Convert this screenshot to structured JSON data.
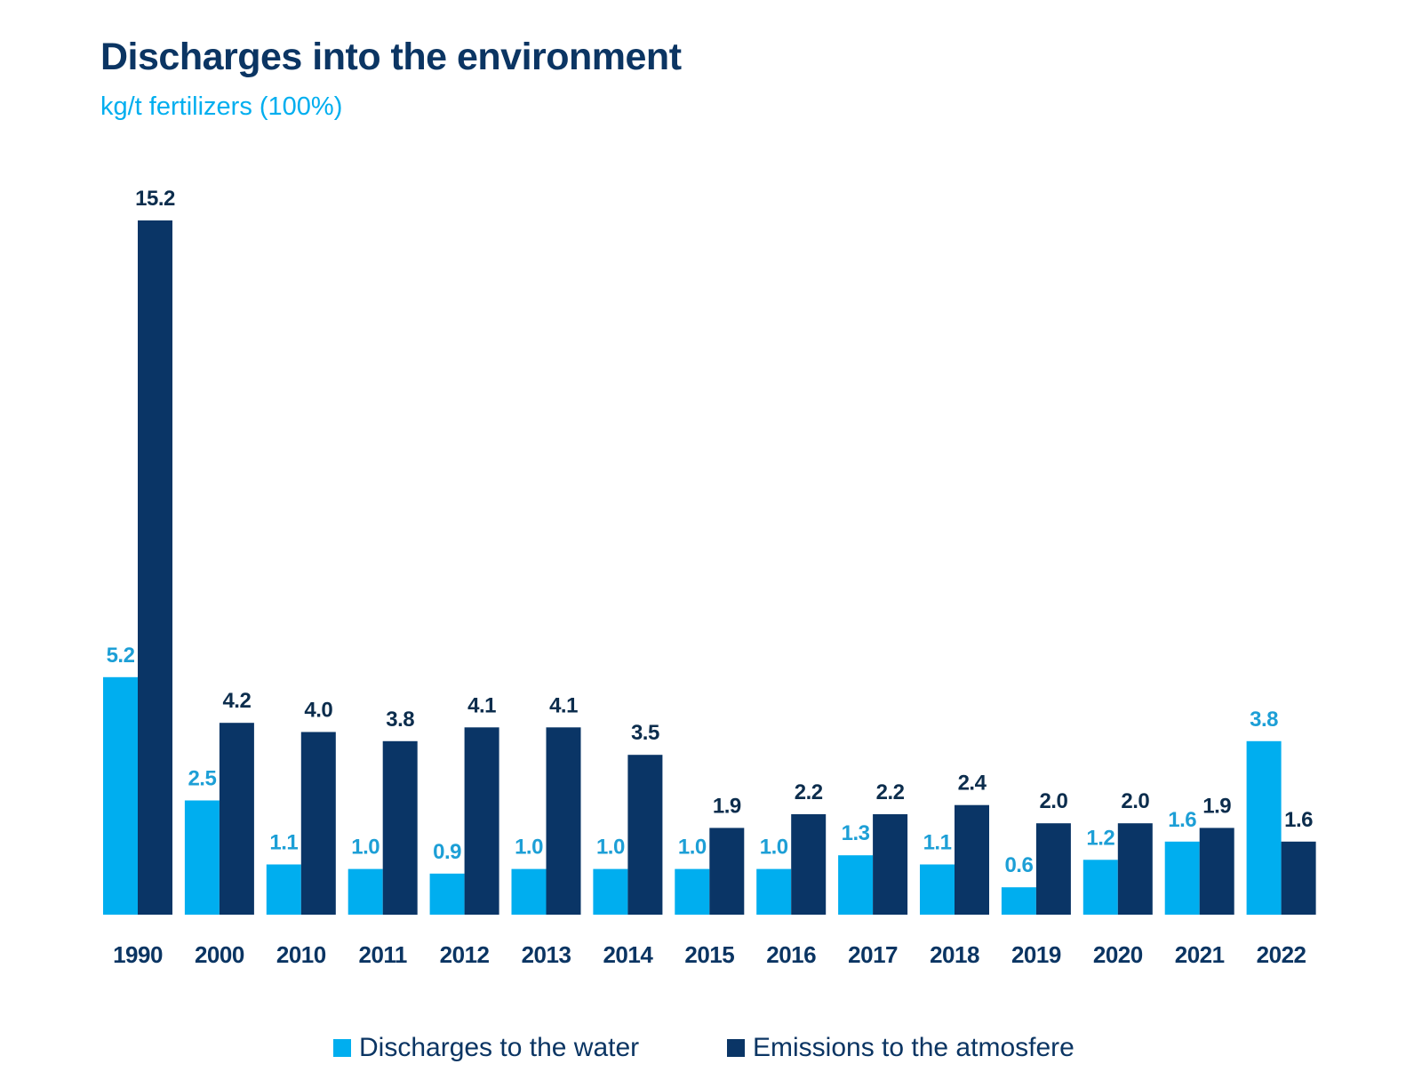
{
  "header": {
    "title": "Discharges into the environment",
    "subtitle": "kg/t fertilizers (100%)"
  },
  "colors": {
    "water": "#00aeef",
    "water_label": "#1d9fd6",
    "atmosphere": "#0a3566",
    "atmosphere_label": "#0c2d4d",
    "category_label": "#0b3563"
  },
  "chart_data": {
    "type": "bar",
    "title": "Discharges into the environment",
    "subtitle": "kg/t fertilizers (100%)",
    "xlabel": "",
    "ylabel": "",
    "ylim": [
      0,
      15.2
    ],
    "grid": false,
    "legend_position": "bottom-center",
    "categories": [
      "1990",
      "2000",
      "2010",
      "2011",
      "2012",
      "2013",
      "2014",
      "2015",
      "2016",
      "2017",
      "2018",
      "2019",
      "2020",
      "2021",
      "2022"
    ],
    "series": [
      {
        "name": "Discharges to the water",
        "values": [
          5.2,
          2.5,
          1.1,
          1.0,
          0.9,
          1.0,
          1.0,
          1.0,
          1.0,
          1.3,
          1.1,
          0.6,
          1.2,
          1.6,
          3.8
        ],
        "labels": [
          "5.2",
          "2.5",
          "1.1",
          "1.0",
          "0.9",
          "1.0",
          "1.0",
          "1.0",
          "1.0",
          "1.3",
          "1.1",
          "0.6",
          "1.2",
          "1.6",
          "3.8"
        ]
      },
      {
        "name": "Emissions to the atmosfere",
        "values": [
          15.2,
          4.2,
          4.0,
          3.8,
          4.1,
          4.1,
          3.5,
          1.9,
          2.2,
          2.2,
          2.4,
          2.0,
          2.0,
          1.9,
          1.6
        ],
        "labels": [
          "15.2",
          "4.2",
          "4.0",
          "3.8",
          "4.1",
          "4.1",
          "3.5",
          "1.9",
          "2.2",
          "2.2",
          "2.4",
          "2.0",
          "2.0",
          "1.9",
          "1.6"
        ]
      }
    ]
  }
}
